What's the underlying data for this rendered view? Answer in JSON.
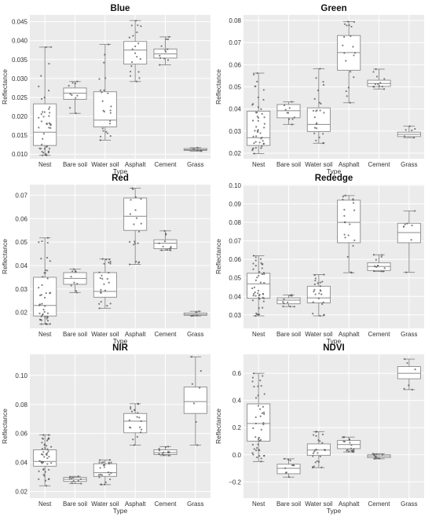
{
  "chart_data": [
    {
      "type": "box",
      "title": "Blue",
      "xlabel": "Type",
      "ylabel": "Reflectance",
      "categories": [
        "Nest",
        "Bare soil",
        "Water soil",
        "Asphalt",
        "Cement",
        "Grass"
      ],
      "ylim": [
        0.0088,
        0.0468
      ],
      "yticks": [
        "0.010",
        "0.015",
        "0.020",
        "0.025",
        "0.030",
        "0.035",
        "0.040",
        "0.045"
      ],
      "boxes": [
        {
          "min": 0.0097,
          "q1": 0.0123,
          "median": 0.0158,
          "q3": 0.0233,
          "max": 0.0383,
          "n": 45
        },
        {
          "min": 0.0208,
          "q1": 0.0245,
          "median": 0.0261,
          "q3": 0.0275,
          "max": 0.0292,
          "n": 10
        },
        {
          "min": 0.0137,
          "q1": 0.0172,
          "median": 0.019,
          "q3": 0.0265,
          "max": 0.039,
          "n": 24
        },
        {
          "min": 0.0292,
          "q1": 0.0338,
          "median": 0.0375,
          "q3": 0.0398,
          "max": 0.0453,
          "n": 20
        },
        {
          "min": 0.0336,
          "q1": 0.0354,
          "median": 0.0365,
          "q3": 0.0378,
          "max": 0.041,
          "n": 12
        },
        {
          "min": 0.0108,
          "q1": 0.011,
          "median": 0.0112,
          "q3": 0.0115,
          "max": 0.0117,
          "n": 5
        }
      ]
    },
    {
      "type": "box",
      "title": "Green",
      "xlabel": "Type",
      "ylabel": "Reflectance",
      "categories": [
        "Nest",
        "Bare soil",
        "Water soil",
        "Asphalt",
        "Cement",
        "Grass"
      ],
      "ylim": [
        0.0175,
        0.0825
      ],
      "yticks": [
        "0.02",
        "0.03",
        "0.04",
        "0.05",
        "0.06",
        "0.07",
        "0.08"
      ],
      "boxes": [
        {
          "min": 0.0198,
          "q1": 0.0235,
          "median": 0.027,
          "q3": 0.039,
          "max": 0.0562,
          "n": 45
        },
        {
          "min": 0.033,
          "q1": 0.036,
          "median": 0.0392,
          "q3": 0.042,
          "max": 0.0432,
          "n": 10
        },
        {
          "min": 0.0245,
          "q1": 0.0298,
          "median": 0.033,
          "q3": 0.0405,
          "max": 0.0582,
          "n": 24
        },
        {
          "min": 0.0428,
          "q1": 0.0575,
          "median": 0.0655,
          "q3": 0.0732,
          "max": 0.0795,
          "n": 20
        },
        {
          "min": 0.049,
          "q1": 0.0502,
          "median": 0.0515,
          "q3": 0.053,
          "max": 0.058,
          "n": 12
        },
        {
          "min": 0.027,
          "q1": 0.0275,
          "median": 0.0285,
          "q3": 0.0295,
          "max": 0.0322,
          "n": 6
        }
      ]
    },
    {
      "type": "box",
      "title": "Red",
      "xlabel": "Type",
      "ylabel": "Reflectance",
      "categories": [
        "Nest",
        "Bare soil",
        "Water soil",
        "Asphalt",
        "Cement",
        "Grass"
      ],
      "ylim": [
        0.0132,
        0.0745
      ],
      "yticks": [
        "0.02",
        "0.03",
        "0.04",
        "0.05",
        "0.06",
        "0.07"
      ],
      "boxes": [
        {
          "min": 0.015,
          "q1": 0.0185,
          "median": 0.023,
          "q3": 0.035,
          "max": 0.0518,
          "n": 45
        },
        {
          "min": 0.0285,
          "q1": 0.032,
          "median": 0.0345,
          "q3": 0.037,
          "max": 0.0385,
          "n": 10
        },
        {
          "min": 0.0218,
          "q1": 0.0265,
          "median": 0.029,
          "q3": 0.037,
          "max": 0.0428,
          "n": 24
        },
        {
          "min": 0.0405,
          "q1": 0.055,
          "median": 0.061,
          "q3": 0.0688,
          "max": 0.073,
          "n": 20
        },
        {
          "min": 0.0465,
          "q1": 0.0472,
          "median": 0.0495,
          "q3": 0.051,
          "max": 0.0548,
          "n": 12
        },
        {
          "min": 0.0185,
          "q1": 0.0188,
          "median": 0.0192,
          "q3": 0.0198,
          "max": 0.0205,
          "n": 5
        }
      ]
    },
    {
      "type": "box",
      "title": "Rededge",
      "xlabel": "Type",
      "ylabel": "Reflectance",
      "categories": [
        "Nest",
        "Bare soil",
        "Water soil",
        "Asphalt",
        "Cement",
        "Grass"
      ],
      "ylim": [
        0.0227,
        0.1004
      ],
      "yticks": [
        "0.03",
        "0.04",
        "0.05",
        "0.06",
        "0.07",
        "0.08",
        "0.09",
        "0.10"
      ],
      "boxes": [
        {
          "min": 0.0295,
          "q1": 0.039,
          "median": 0.0468,
          "q3": 0.0525,
          "max": 0.062,
          "n": 45
        },
        {
          "min": 0.0345,
          "q1": 0.036,
          "median": 0.038,
          "q3": 0.0392,
          "max": 0.0408,
          "n": 10
        },
        {
          "min": 0.0295,
          "q1": 0.0365,
          "median": 0.0392,
          "q3": 0.0455,
          "max": 0.0518,
          "n": 24
        },
        {
          "min": 0.0528,
          "q1": 0.069,
          "median": 0.08,
          "q3": 0.092,
          "max": 0.0945,
          "n": 20
        },
        {
          "min": 0.0535,
          "q1": 0.054,
          "median": 0.0562,
          "q3": 0.0582,
          "max": 0.0625,
          "n": 12
        },
        {
          "min": 0.053,
          "q1": 0.069,
          "median": 0.0745,
          "q3": 0.0795,
          "max": 0.0862,
          "n": 8
        }
      ]
    },
    {
      "type": "box",
      "title": "NIR",
      "xlabel": "Type",
      "ylabel": "Reflectance",
      "categories": [
        "Nest",
        "Bare soil",
        "Water soil",
        "Asphalt",
        "Cement",
        "Grass"
      ],
      "ylim": [
        0.0155,
        0.1145
      ],
      "yticks": [
        "0.02",
        "0.04",
        "0.06",
        "0.08",
        "0.10"
      ],
      "boxes": [
        {
          "min": 0.024,
          "q1": 0.0375,
          "median": 0.0408,
          "q3": 0.0488,
          "max": 0.059,
          "n": 45
        },
        {
          "min": 0.0255,
          "q1": 0.027,
          "median": 0.0285,
          "q3": 0.0298,
          "max": 0.0305,
          "n": 10
        },
        {
          "min": 0.0248,
          "q1": 0.0305,
          "median": 0.033,
          "q3": 0.0392,
          "max": 0.0418,
          "n": 24
        },
        {
          "min": 0.052,
          "q1": 0.0605,
          "median": 0.0685,
          "q3": 0.0738,
          "max": 0.0805,
          "n": 20
        },
        {
          "min": 0.0448,
          "q1": 0.0455,
          "median": 0.0468,
          "q3": 0.0488,
          "max": 0.051,
          "n": 12
        },
        {
          "min": 0.052,
          "q1": 0.0738,
          "median": 0.082,
          "q3": 0.092,
          "max": 0.1128,
          "n": 7
        }
      ]
    },
    {
      "type": "box",
      "title": "NDVI",
      "xlabel": "Type",
      "ylabel": "Reflectance",
      "categories": [
        "Nest",
        "Bare soil",
        "Water soil",
        "Asphalt",
        "Cement",
        "Grass"
      ],
      "ylim": [
        -0.32,
        0.74
      ],
      "yticks": [
        "−0.2",
        "0.0",
        "0.2",
        "0.4",
        "0.6"
      ],
      "boxes": [
        {
          "min": -0.05,
          "q1": 0.1,
          "median": 0.23,
          "q3": 0.375,
          "max": 0.6,
          "n": 45
        },
        {
          "min": -0.165,
          "q1": -0.14,
          "median": -0.1,
          "q3": -0.07,
          "max": -0.03,
          "n": 10
        },
        {
          "min": -0.095,
          "q1": -0.005,
          "median": 0.035,
          "q3": 0.08,
          "max": 0.17,
          "n": 24
        },
        {
          "min": 0.02,
          "q1": 0.045,
          "median": 0.075,
          "q3": 0.105,
          "max": 0.13,
          "n": 20
        },
        {
          "min": -0.03,
          "q1": -0.022,
          "median": -0.01,
          "q3": 0.0,
          "max": 0.008,
          "n": 12
        },
        {
          "min": 0.48,
          "q1": 0.56,
          "median": 0.6,
          "q3": 0.65,
          "max": 0.705,
          "n": 6
        }
      ]
    }
  ]
}
